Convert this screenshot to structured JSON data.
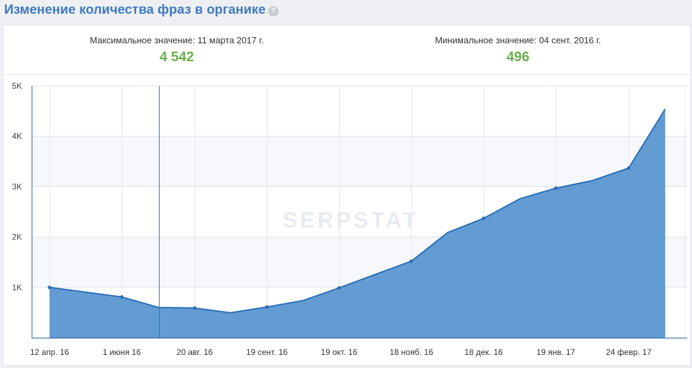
{
  "header": {
    "title": "Изменение количества фраз в органике",
    "help_icon": "question-icon"
  },
  "stats": {
    "max_label": "Максимальное значение: 11 марта 2017 г.",
    "max_value": "4 542",
    "min_label": "Минимальное значение: 04 сент. 2016 г.",
    "min_value": "496"
  },
  "watermark": "SERPSTAT",
  "colors": {
    "title": "#3f79c4",
    "value": "#6ab04c",
    "area": "#5b97d1",
    "line": "#2a6db5",
    "cursor_line": "#2a7ab5"
  },
  "chart_data": {
    "type": "area",
    "title": "Изменение количества фраз в органике",
    "xlabel": "",
    "ylabel": "",
    "x_ticks": [
      "12 апр. 16",
      "1 июня 16",
      "20 авг. 16",
      "19 сент. 16",
      "19 окт. 16",
      "18 нояб. 16",
      "18 дек. 16",
      "19 янв. 17",
      "24 февр. 17"
    ],
    "y_ticks": [
      "1K",
      "2K",
      "3K",
      "4K",
      "5K"
    ],
    "y_tick_values": [
      1000,
      2000,
      3000,
      4000,
      5000
    ],
    "ylim": [
      0,
      5000
    ],
    "grid": true,
    "series": [
      {
        "name": "",
        "points": [
          {
            "x": "12 апр. 16",
            "y": 1000,
            "marker": true
          },
          {
            "x": "1 июня 16",
            "y": 810,
            "marker": true
          },
          {
            "x": "",
            "y": 600,
            "marker": false
          },
          {
            "x": "20 авг. 16",
            "y": 590,
            "marker": true
          },
          {
            "x": "04 сент. 16",
            "y": 496,
            "marker": false
          },
          {
            "x": "19 сент. 16",
            "y": 610,
            "marker": true
          },
          {
            "x": "",
            "y": 740,
            "marker": false
          },
          {
            "x": "19 окт. 16",
            "y": 990,
            "marker": true
          },
          {
            "x": "",
            "y": 1260,
            "marker": false
          },
          {
            "x": "18 нояб. 16",
            "y": 1520,
            "marker": true
          },
          {
            "x": "",
            "y": 2090,
            "marker": false
          },
          {
            "x": "18 дек. 16",
            "y": 2370,
            "marker": true
          },
          {
            "x": "",
            "y": 2760,
            "marker": false
          },
          {
            "x": "19 янв. 17",
            "y": 2970,
            "marker": true
          },
          {
            "x": "",
            "y": 3120,
            "marker": false
          },
          {
            "x": "24 февр. 17",
            "y": 3370,
            "marker": true
          },
          {
            "x": "11 марта 17",
            "y": 4542,
            "marker": false
          }
        ]
      }
    ]
  }
}
